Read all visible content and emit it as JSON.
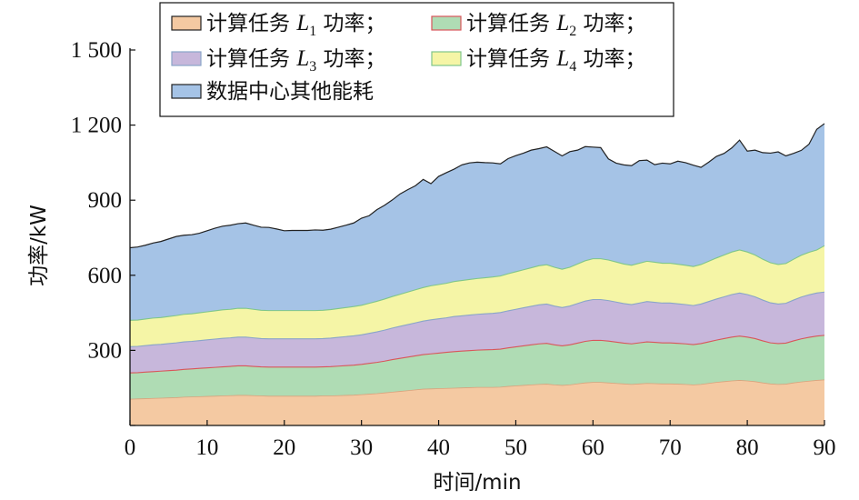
{
  "chart_data": {
    "type": "area",
    "stacked": true,
    "xlabel": "时间/min",
    "ylabel": "功率/kW",
    "xlim": [
      0,
      90
    ],
    "ylim": [
      0,
      1500
    ],
    "xticks": [
      0,
      10,
      20,
      30,
      40,
      50,
      60,
      70,
      80,
      90
    ],
    "yticks": [
      0,
      300,
      600,
      900,
      1200,
      1500
    ],
    "ytick_labels": [
      "",
      "300",
      "600",
      "900",
      "1 200",
      "1 500"
    ],
    "xtick_labels": [
      "0",
      "10",
      "20",
      "30",
      "40",
      "50",
      "60",
      "70",
      "80",
      "90"
    ],
    "grid": false,
    "legend_position": "top",
    "x": [
      0,
      1,
      2,
      3,
      4,
      5,
      6,
      7,
      8,
      9,
      10,
      11,
      12,
      13,
      14,
      15,
      16,
      17,
      18,
      19,
      20,
      21,
      22,
      23,
      24,
      25,
      26,
      27,
      28,
      29,
      30,
      31,
      32,
      33,
      34,
      35,
      36,
      37,
      38,
      39,
      40,
      41,
      42,
      43,
      44,
      45,
      46,
      47,
      48,
      49,
      50,
      51,
      52,
      53,
      54,
      55,
      56,
      57,
      58,
      59,
      60,
      61,
      62,
      63,
      64,
      65,
      66,
      67,
      68,
      69,
      70,
      71,
      72,
      73,
      74,
      75,
      76,
      77,
      78,
      79,
      80,
      81,
      82,
      83,
      84,
      85,
      86,
      87,
      88,
      89,
      90
    ],
    "series": [
      {
        "name": "计算任务 L1 功率",
        "legend": {
          "prefix": "计算任务 ",
          "italic": "L",
          "sub": "1",
          "suffix": " 功率；"
        },
        "color": "#f4c9a2",
        "values": [
          105,
          106,
          107,
          108,
          109,
          110,
          111,
          113,
          114,
          115,
          116,
          117,
          118,
          119,
          120,
          120,
          119,
          118,
          117,
          117,
          117,
          117,
          117,
          117,
          117,
          118,
          118,
          119,
          120,
          121,
          123,
          125,
          127,
          130,
          133,
          136,
          139,
          142,
          145,
          146,
          147,
          148,
          149,
          150,
          151,
          152,
          152,
          152,
          153,
          156,
          158,
          160,
          162,
          164,
          165,
          162,
          160,
          162,
          166,
          170,
          172,
          172,
          170,
          168,
          166,
          164,
          166,
          168,
          167,
          166,
          166,
          165,
          164,
          162,
          164,
          168,
          172,
          175,
          178,
          180,
          178,
          175,
          170,
          166,
          164,
          165,
          170,
          174,
          177,
          180,
          182
        ]
      },
      {
        "name": "计算任务 L2 功率",
        "legend": {
          "prefix": "计算任务 ",
          "italic": "L",
          "sub": "2",
          "suffix": " 功率；"
        },
        "color": "#afdcb4",
        "values": [
          105,
          105,
          106,
          107,
          108,
          109,
          110,
          111,
          112,
          113,
          114,
          115,
          116,
          117,
          118,
          118,
          117,
          116,
          116,
          116,
          116,
          116,
          116,
          116,
          116,
          116,
          117,
          118,
          119,
          120,
          121,
          123,
          125,
          127,
          130,
          132,
          134,
          136,
          138,
          140,
          142,
          144,
          146,
          147,
          148,
          149,
          150,
          151,
          152,
          154,
          156,
          158,
          160,
          162,
          163,
          160,
          158,
          160,
          163,
          166,
          168,
          168,
          167,
          165,
          163,
          162,
          164,
          166,
          165,
          164,
          164,
          163,
          162,
          161,
          163,
          166,
          169,
          172,
          175,
          177,
          175,
          172,
          168,
          164,
          163,
          164,
          168,
          172,
          175,
          177,
          178
        ]
      },
      {
        "name": "计算任务 L3 功率",
        "legend": {
          "prefix": "计算任务 ",
          "italic": "L",
          "sub": "3",
          "suffix": " 功率；"
        },
        "color": "#c7b7db",
        "values": [
          105,
          105,
          106,
          107,
          107,
          108,
          109,
          110,
          110,
          111,
          112,
          113,
          114,
          114,
          115,
          115,
          114,
          113,
          113,
          113,
          113,
          113,
          113,
          113,
          113,
          113,
          114,
          115,
          116,
          117,
          118,
          120,
          122,
          124,
          126,
          128,
          130,
          132,
          134,
          136,
          137,
          138,
          140,
          141,
          142,
          143,
          144,
          145,
          146,
          148,
          150,
          152,
          154,
          156,
          157,
          155,
          153,
          155,
          158,
          161,
          163,
          163,
          162,
          160,
          158,
          157,
          159,
          161,
          160,
          159,
          159,
          158,
          157,
          156,
          158,
          161,
          164,
          167,
          170,
          172,
          170,
          167,
          163,
          160,
          158,
          159,
          163,
          167,
          170,
          172,
          173
        ]
      },
      {
        "name": "计算任务 L4 功率",
        "legend": {
          "prefix": "计算任务 ",
          "italic": "L",
          "sub": "4",
          "suffix": " 功率；"
        },
        "color": "#f5f5a6",
        "values": [
          105,
          105,
          106,
          107,
          107,
          108,
          109,
          110,
          110,
          111,
          112,
          113,
          114,
          114,
          115,
          115,
          114,
          113,
          113,
          113,
          113,
          113,
          113,
          113,
          113,
          113,
          114,
          115,
          116,
          117,
          118,
          120,
          122,
          124,
          126,
          128,
          130,
          132,
          134,
          136,
          137,
          138,
          140,
          141,
          142,
          143,
          144,
          145,
          146,
          148,
          150,
          152,
          154,
          156,
          157,
          155,
          153,
          155,
          158,
          161,
          163,
          163,
          162,
          160,
          158,
          157,
          159,
          161,
          160,
          159,
          159,
          158,
          157,
          156,
          158,
          161,
          164,
          167,
          170,
          172,
          170,
          167,
          163,
          160,
          158,
          159,
          163,
          167,
          170,
          172,
          185
        ]
      },
      {
        "name": "数据中心其他能耗",
        "legend": {
          "prefix": "数据中心其他能耗",
          "italic": "",
          "sub": "",
          "suffix": ""
        },
        "color": "#a5c3e6",
        "values": [
          290,
          292,
          295,
          300,
          304,
          310,
          316,
          316,
          316,
          318,
          324,
          330,
          334,
          336,
          338,
          341,
          336,
          332,
          332,
          326,
          319,
          320,
          320,
          320,
          322,
          320,
          321,
          325,
          329,
          334,
          348,
          350,
          366,
          375,
          386,
          401,
          409,
          416,
          432,
          408,
          432,
          442,
          449,
          462,
          466,
          465,
          460,
          456,
          448,
          460,
          464,
          466,
          470,
          468,
          471,
          463,
          453,
          462,
          455,
          456,
          446,
          444,
          404,
          395,
          396,
          398,
          410,
          404,
          390,
          400,
          397,
          412,
          410,
          405,
          388,
          396,
          406,
          406,
          416,
          439,
          403,
          419,
          426,
          438,
          450,
          430,
          423,
          419,
          432,
          482,
          488
        ]
      }
    ]
  }
}
